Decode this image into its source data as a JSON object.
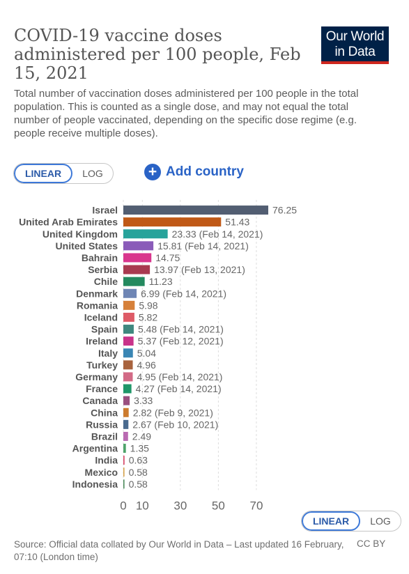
{
  "header": {
    "title": "COVID-19 vaccine doses administered per 100 people, Feb 15, 2021",
    "subtitle": "Total number of vaccination doses administered per 100 people in the total population. This is counted as a single dose, and may not equal the total number of people vaccinated, depending on the specific dose regime (e.g. people receive multiple doses).",
    "logo_line1": "Our World",
    "logo_line2": "in Data"
  },
  "controls": {
    "top_toggle": {
      "linear": "LINEAR",
      "log": "LOG",
      "selected": "LINEAR"
    },
    "add_country": "Add country",
    "bottom_toggle": {
      "linear": "LINEAR",
      "log": "LOG",
      "selected": "LINEAR"
    }
  },
  "footer": {
    "source": "Source: Official data collated by Our World in Data – Last updated 16 February, 07:10 (London time)",
    "license": "CC BY"
  },
  "colors": {
    "brand_navy": "#002147",
    "brand_red": "#ce261e",
    "accent_blue": "#2a63c6"
  },
  "chart_data": {
    "type": "bar",
    "orientation": "horizontal",
    "title": "COVID-19 vaccine doses administered per 100 people, Feb 15, 2021",
    "xlim": [
      0,
      76.25
    ],
    "x_ticks": [
      0,
      10,
      30,
      50,
      70
    ],
    "grid": true,
    "categories": [
      "Israel",
      "United Arab Emirates",
      "United Kingdom",
      "United States",
      "Bahrain",
      "Serbia",
      "Chile",
      "Denmark",
      "Romania",
      "Iceland",
      "Spain",
      "Ireland",
      "Italy",
      "Turkey",
      "Germany",
      "France",
      "Canada",
      "China",
      "Russia",
      "Brazil",
      "Argentina",
      "India",
      "Mexico",
      "Indonesia"
    ],
    "values": [
      76.25,
      51.43,
      23.33,
      15.81,
      14.75,
      13.97,
      11.23,
      6.99,
      5.98,
      5.82,
      5.48,
      5.37,
      5.04,
      4.96,
      4.95,
      4.27,
      3.33,
      2.82,
      2.67,
      2.49,
      1.35,
      0.63,
      0.58,
      0.58
    ],
    "value_labels": [
      "76.25",
      "51.43",
      "23.33 (Feb 14, 2021)",
      "15.81 (Feb 14, 2021)",
      "14.75",
      "13.97 (Feb 13, 2021)",
      "11.23",
      "6.99 (Feb 14, 2021)",
      "5.98",
      "5.82",
      "5.48 (Feb 14, 2021)",
      "5.37 (Feb 12, 2021)",
      "5.04",
      "4.96",
      "4.95 (Feb 14, 2021)",
      "4.27 (Feb 14, 2021)",
      "3.33",
      "2.82 (Feb 9, 2021)",
      "2.67 (Feb 10, 2021)",
      "2.49",
      "1.35",
      "0.63",
      "0.58",
      "0.58"
    ],
    "colors": [
      "#525e72",
      "#c05917",
      "#28a39b",
      "#8a5bb9",
      "#d9368d",
      "#a83a50",
      "#248a5f",
      "#6f86b5",
      "#d6803a",
      "#de5b67",
      "#3f887f",
      "#c9338a",
      "#3a86b4",
      "#a8633e",
      "#d26a86",
      "#1f9668",
      "#9a4f7f",
      "#cc7b2e",
      "#4a6a8e",
      "#b96ab1",
      "#4ea36a",
      "#d84b6c",
      "#d6a24a",
      "#4c8a5a"
    ]
  }
}
